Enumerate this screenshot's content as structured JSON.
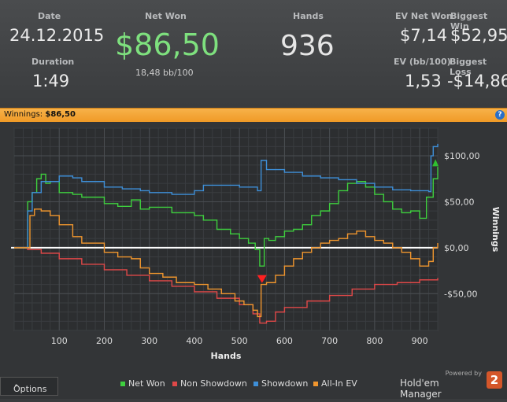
{
  "stats": {
    "date_label": "Date",
    "date": "24.12.2015",
    "duration_label": "Duration",
    "duration": "1:49",
    "net_won_label": "Net Won",
    "net_won": "$86,50",
    "net_won_bb": "18,48 bb/100",
    "hands_label": "Hands",
    "hands": "936",
    "ev_net_won_label": "EV Net Won",
    "ev_net_won": "$7,14",
    "biggest_win_label": "Biggest Win",
    "biggest_win": "$52,95",
    "ev_bb_label": "EV (bb/100)",
    "ev_bb": "1,53",
    "biggest_loss_label": "Biggest Loss",
    "biggest_loss": "-$14,86"
  },
  "winnings_bar": {
    "label": "Winnings:",
    "value": "$86,50",
    "help": "?"
  },
  "options": {
    "label": "Options",
    "arrow": "⌃"
  },
  "brand": {
    "powered_by": "Powered by",
    "name": "Hold'em Manager",
    "version": "2"
  },
  "colors": {
    "net_won": "#3ecf3e",
    "non_showdown": "#e04848",
    "showdown": "#3e8fd8",
    "all_in_ev": "#f0962e",
    "accent": "#f0a030"
  },
  "chart_data": {
    "type": "line",
    "xlabel": "Hands",
    "ylabel": "Winnings",
    "xlim": [
      0,
      940
    ],
    "ylim": [
      -90,
      130
    ],
    "x_ticks": [
      100,
      200,
      300,
      400,
      500,
      600,
      700,
      800,
      900
    ],
    "y_ticks": [
      -50,
      0,
      50,
      100
    ],
    "y_tick_labels": [
      "-$50,00",
      "$0,00",
      "$50,00",
      "$100,00"
    ],
    "grid": true,
    "legend_position": "bottom",
    "series": [
      {
        "name": "Net Won",
        "points": [
          [
            0,
            0
          ],
          [
            25,
            0
          ],
          [
            30,
            50
          ],
          [
            40,
            60
          ],
          [
            50,
            75
          ],
          [
            60,
            80
          ],
          [
            70,
            70
          ],
          [
            80,
            72
          ],
          [
            100,
            60
          ],
          [
            130,
            58
          ],
          [
            150,
            55
          ],
          [
            200,
            48
          ],
          [
            230,
            45
          ],
          [
            260,
            52
          ],
          [
            280,
            42
          ],
          [
            300,
            44
          ],
          [
            350,
            38
          ],
          [
            400,
            35
          ],
          [
            420,
            30
          ],
          [
            450,
            20
          ],
          [
            480,
            15
          ],
          [
            500,
            10
          ],
          [
            520,
            5
          ],
          [
            535,
            -2
          ],
          [
            545,
            -20
          ],
          [
            555,
            10
          ],
          [
            565,
            8
          ],
          [
            580,
            12
          ],
          [
            600,
            18
          ],
          [
            620,
            20
          ],
          [
            640,
            25
          ],
          [
            660,
            35
          ],
          [
            680,
            40
          ],
          [
            700,
            48
          ],
          [
            720,
            62
          ],
          [
            740,
            70
          ],
          [
            760,
            72
          ],
          [
            780,
            66
          ],
          [
            800,
            58
          ],
          [
            820,
            50
          ],
          [
            840,
            42
          ],
          [
            860,
            38
          ],
          [
            880,
            40
          ],
          [
            900,
            32
          ],
          [
            915,
            55
          ],
          [
            930,
            75
          ],
          [
            940,
            88
          ]
        ]
      },
      {
        "name": "Non Showdown",
        "points": [
          [
            0,
            0
          ],
          [
            30,
            -2
          ],
          [
            60,
            -6
          ],
          [
            100,
            -12
          ],
          [
            150,
            -18
          ],
          [
            200,
            -24
          ],
          [
            250,
            -30
          ],
          [
            300,
            -36
          ],
          [
            350,
            -42
          ],
          [
            400,
            -48
          ],
          [
            450,
            -55
          ],
          [
            500,
            -62
          ],
          [
            530,
            -72
          ],
          [
            545,
            -82
          ],
          [
            560,
            -80
          ],
          [
            580,
            -70
          ],
          [
            600,
            -65
          ],
          [
            650,
            -58
          ],
          [
            700,
            -52
          ],
          [
            750,
            -45
          ],
          [
            800,
            -40
          ],
          [
            850,
            -38
          ],
          [
            900,
            -35
          ],
          [
            940,
            -33
          ]
        ]
      },
      {
        "name": "Showdown",
        "points": [
          [
            0,
            0
          ],
          [
            25,
            0
          ],
          [
            30,
            40
          ],
          [
            40,
            60
          ],
          [
            60,
            72
          ],
          [
            100,
            78
          ],
          [
            130,
            76
          ],
          [
            150,
            72
          ],
          [
            200,
            66
          ],
          [
            240,
            64
          ],
          [
            280,
            62
          ],
          [
            300,
            60
          ],
          [
            350,
            58
          ],
          [
            400,
            62
          ],
          [
            420,
            68
          ],
          [
            450,
            68
          ],
          [
            500,
            66
          ],
          [
            540,
            62
          ],
          [
            548,
            95
          ],
          [
            560,
            85
          ],
          [
            600,
            82
          ],
          [
            640,
            78
          ],
          [
            680,
            76
          ],
          [
            720,
            74
          ],
          [
            760,
            70
          ],
          [
            800,
            66
          ],
          [
            840,
            63
          ],
          [
            880,
            62
          ],
          [
            920,
            61
          ],
          [
            925,
            100
          ],
          [
            930,
            110
          ],
          [
            940,
            113
          ]
        ]
      },
      {
        "name": "All-In EV",
        "points": [
          [
            0,
            0
          ],
          [
            25,
            0
          ],
          [
            35,
            35
          ],
          [
            45,
            42
          ],
          [
            60,
            40
          ],
          [
            80,
            35
          ],
          [
            100,
            25
          ],
          [
            130,
            12
          ],
          [
            150,
            5
          ],
          [
            200,
            -5
          ],
          [
            230,
            -10
          ],
          [
            260,
            -12
          ],
          [
            280,
            -22
          ],
          [
            300,
            -28
          ],
          [
            330,
            -32
          ],
          [
            360,
            -38
          ],
          [
            400,
            -40
          ],
          [
            430,
            -45
          ],
          [
            460,
            -50
          ],
          [
            490,
            -58
          ],
          [
            510,
            -62
          ],
          [
            530,
            -68
          ],
          [
            540,
            -75
          ],
          [
            548,
            -40
          ],
          [
            560,
            -38
          ],
          [
            580,
            -30
          ],
          [
            600,
            -20
          ],
          [
            620,
            -12
          ],
          [
            640,
            -5
          ],
          [
            660,
            0
          ],
          [
            680,
            5
          ],
          [
            700,
            8
          ],
          [
            720,
            10
          ],
          [
            740,
            15
          ],
          [
            760,
            18
          ],
          [
            780,
            12
          ],
          [
            800,
            8
          ],
          [
            820,
            5
          ],
          [
            840,
            0
          ],
          [
            860,
            -5
          ],
          [
            880,
            -12
          ],
          [
            900,
            -20
          ],
          [
            920,
            -15
          ],
          [
            930,
            0
          ],
          [
            940,
            5
          ]
        ]
      }
    ]
  }
}
